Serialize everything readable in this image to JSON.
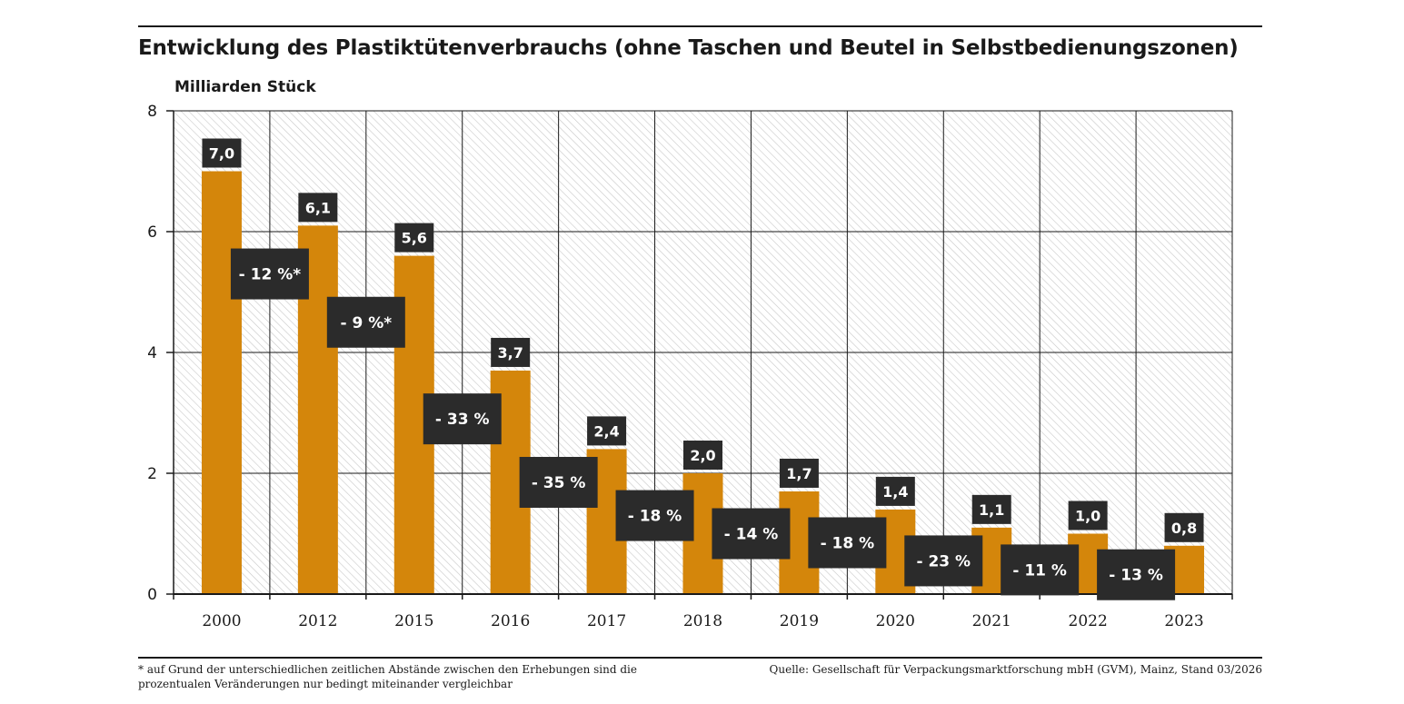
{
  "page": {
    "title": "Entwicklung des Plastiktütenverbrauchs (ohne Taschen und Beutel in Selbstbedienungszonen)",
    "footnote": "* auf Grund der unterschiedlichen zeitlichen Abstände zwischen den Erhebungen sind die prozentualen Veränderungen nur bedingt miteinander vergleichbar",
    "source": "Quelle: Gesellschaft für Verpackungsmarktforschung mbH (GVM), Mainz, Stand 03/2026"
  },
  "colors": {
    "bar": "#d4860b",
    "label_box": "#2b2b2b",
    "label_text": "#ffffff",
    "grid": "#1a1a1a",
    "hatch": "#c8c8c8"
  },
  "chart_data": {
    "type": "bar",
    "title": "Entwicklung des Plastiktütenverbrauchs (ohne Taschen und Beutel in Selbstbedienungszonen)",
    "ylabel": "Milliarden Stück",
    "xlabel": "",
    "ylim": [
      0,
      8
    ],
    "yticks": [
      0,
      2,
      4,
      6,
      8
    ],
    "grid": true,
    "categories": [
      "2000",
      "2012",
      "2015",
      "2016",
      "2017",
      "2018",
      "2019",
      "2020",
      "2021",
      "2022",
      "2023"
    ],
    "values": [
      7.0,
      6.1,
      5.6,
      3.7,
      2.4,
      2.0,
      1.7,
      1.4,
      1.1,
      1.0,
      0.8
    ],
    "value_labels": [
      "7,0",
      "6,1",
      "5,6",
      "3,7",
      "2,4",
      "2,0",
      "1,7",
      "1,4",
      "1,1",
      "1,0",
      "0,8"
    ],
    "changes": [
      {
        "label": "- 12 %*",
        "level": 5.3
      },
      {
        "label": "- 9 %*",
        "level": 4.5
      },
      {
        "label": "- 33 %",
        "level": 2.9
      },
      {
        "label": "- 35 %",
        "level": 1.85
      },
      {
        "label": "- 18 %",
        "level": 1.3
      },
      {
        "label": "- 14 %",
        "level": 1.0
      },
      {
        "label": "- 18 %",
        "level": 0.85
      },
      {
        "label": "- 23 %",
        "level": 0.55
      },
      {
        "label": "- 11 %",
        "level": 0.4
      },
      {
        "label": "- 13 %",
        "level": 0.32
      }
    ]
  }
}
